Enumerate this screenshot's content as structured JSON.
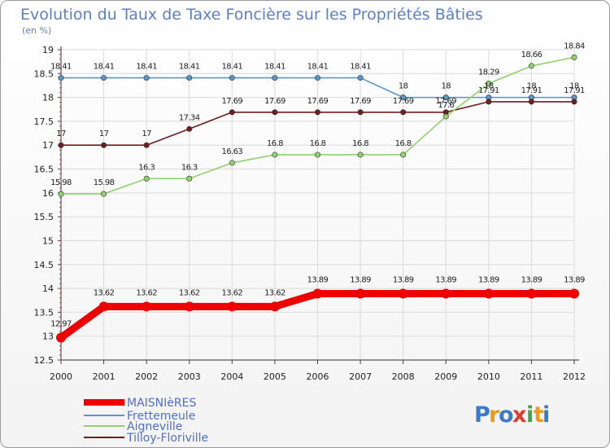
{
  "chart_data": {
    "type": "line",
    "title": "Evolution du Taux de Taxe Foncière sur les Propriétés Bâties",
    "ylabel": "(en %)",
    "xlabel": "",
    "categories": [
      "2000",
      "2001",
      "2002",
      "2003",
      "2004",
      "2005",
      "2006",
      "2007",
      "2008",
      "2009",
      "2010",
      "2011",
      "2012"
    ],
    "ylim": [
      12.5,
      19
    ],
    "yticks": [
      "12.5",
      "13",
      "13.5",
      "14",
      "14.5",
      "15",
      "15.5",
      "16",
      "16.5",
      "17",
      "17.5",
      "18",
      "18.5",
      "19"
    ],
    "grid": true,
    "legend_position": "bottom-left",
    "series": [
      {
        "name": "Frettemeule",
        "color": "#5a96c8",
        "values": [
          18.41,
          18.41,
          18.41,
          18.41,
          18.41,
          18.41,
          18.41,
          18.41,
          18,
          18,
          18,
          18,
          18
        ],
        "labels": [
          "18.41",
          "18.41",
          "18.41",
          "18.41",
          "18.41",
          "18.41",
          "18.41",
          "18.41",
          "18",
          "18",
          "18",
          "18",
          "18"
        ]
      },
      {
        "name": "Tilloy-Floriville",
        "color": "#6e1e1e",
        "values": [
          17,
          17,
          17,
          17.34,
          17.69,
          17.69,
          17.69,
          17.69,
          17.69,
          17.69,
          17.91,
          17.91,
          17.91
        ],
        "labels": [
          "17",
          "17",
          "17",
          "17.34",
          "17.69",
          "17.69",
          "17.69",
          "17.69",
          "17.69",
          "17.69",
          "17.91",
          "17.91",
          "17.91"
        ]
      },
      {
        "name": "Aigneville",
        "color": "#8fd16e",
        "values": [
          15.98,
          15.98,
          16.3,
          16.3,
          16.63,
          16.8,
          16.8,
          16.8,
          16.8,
          17.6,
          18.29,
          18.66,
          18.84
        ],
        "labels": [
          "15.98",
          "15.98",
          "16.3",
          "16.3",
          "16.63",
          "16.8",
          "16.8",
          "16.8",
          "16.8",
          "17.6",
          "18.29",
          "18.66",
          "18.84"
        ]
      },
      {
        "name": "MAISNIèRES",
        "color": "#ee0000",
        "values": [
          12.97,
          13.62,
          13.62,
          13.62,
          13.62,
          13.62,
          13.89,
          13.89,
          13.89,
          13.89,
          13.89,
          13.89,
          13.89
        ],
        "labels": [
          "12.97",
          "13.62",
          "13.62",
          "13.62",
          "13.62",
          "13.62",
          "13.89",
          "13.89",
          "13.89",
          "13.89",
          "13.89",
          "13.89",
          "13.89"
        ]
      }
    ],
    "legend": [
      "MAISNIèRES",
      "Frettemeule",
      "Aigneville",
      "Tilloy-Floriville"
    ]
  },
  "watermark": {
    "text": "Proxiti"
  }
}
